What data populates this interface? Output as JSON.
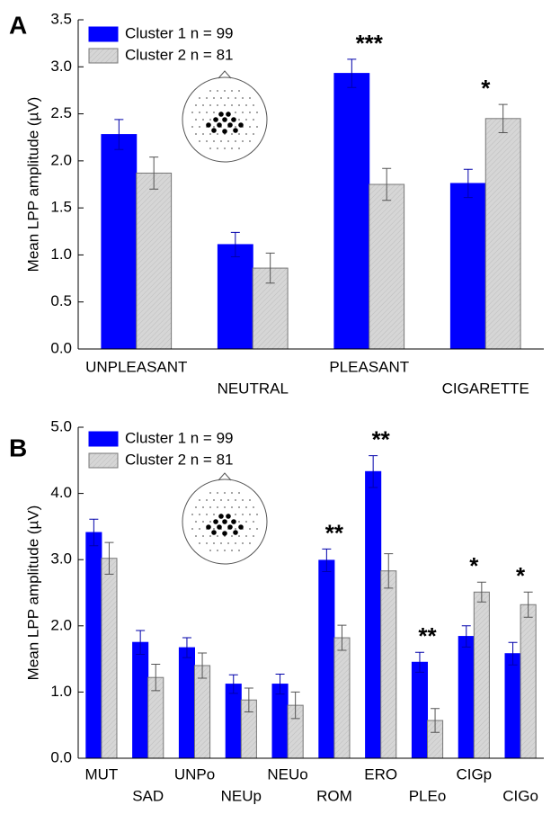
{
  "chart_data": [
    {
      "type": "bar",
      "panel_label": "A",
      "ylabel": "Mean LPP amplitude (µV)",
      "categories": [
        "UNPLEASANT",
        "NEUTRAL",
        "PLEASANT",
        "CIGARETTE"
      ],
      "series": [
        {
          "name": "Cluster 1 n = 99",
          "color": "#0000ff",
          "values": [
            2.28,
            1.11,
            2.93,
            1.76
          ],
          "errors": [
            0.16,
            0.13,
            0.15,
            0.15
          ]
        },
        {
          "name": "Cluster 2 n = 81",
          "color": "#d6d6d6",
          "values": [
            1.87,
            0.86,
            1.75,
            2.45
          ],
          "errors": [
            0.17,
            0.16,
            0.17,
            0.15
          ]
        }
      ],
      "annotations": [
        {
          "text": "***",
          "category": "PLEASANT"
        },
        {
          "text": "*",
          "category": "CIGARETTE"
        }
      ],
      "ylim": [
        0,
        3.5
      ],
      "yticks": [
        {
          "value": 0,
          "label": "0.0"
        },
        {
          "value": 0.5,
          "label": "0.5"
        },
        {
          "value": 1,
          "label": "1.0"
        },
        {
          "value": 1.5,
          "label": "1.5"
        },
        {
          "value": 2,
          "label": "2.0"
        },
        {
          "value": 2.5,
          "label": "2.5"
        },
        {
          "value": 3,
          "label": "3.0"
        },
        {
          "value": 3.5,
          "label": "3.5"
        }
      ],
      "legend": "upper left"
    },
    {
      "type": "bar",
      "panel_label": "B",
      "ylabel": "Mean LPP amplitude (µV)",
      "categories": [
        "MUT",
        "SAD",
        "UNPo",
        "NEUp",
        "NEUo",
        "ROM",
        "ERO",
        "PLEo",
        "CIGp",
        "CIGo"
      ],
      "series": [
        {
          "name": "Cluster 1 n = 99",
          "color": "#0000ff",
          "values": [
            3.41,
            1.75,
            1.67,
            1.12,
            1.12,
            2.99,
            4.33,
            1.45,
            1.84,
            1.58
          ],
          "errors": [
            0.2,
            0.18,
            0.15,
            0.14,
            0.15,
            0.17,
            0.24,
            0.15,
            0.16,
            0.17
          ]
        },
        {
          "name": "Cluster 2 n = 81",
          "color": "#d6d6d6",
          "values": [
            3.02,
            1.22,
            1.4,
            0.88,
            0.8,
            1.82,
            2.83,
            0.57,
            2.51,
            2.32
          ],
          "errors": [
            0.24,
            0.2,
            0.19,
            0.18,
            0.2,
            0.19,
            0.26,
            0.18,
            0.15,
            0.19
          ]
        }
      ],
      "annotations": [
        {
          "text": "**",
          "category": "ROM"
        },
        {
          "text": "**",
          "category": "ERO"
        },
        {
          "text": "**",
          "category": "PLEo"
        },
        {
          "text": "*",
          "category": "CIGp"
        },
        {
          "text": "*",
          "category": "CIGo"
        }
      ],
      "ylim": [
        0,
        5
      ],
      "yticks": [
        {
          "value": 0,
          "label": "0.0"
        },
        {
          "value": 1,
          "label": "1.0"
        },
        {
          "value": 2,
          "label": "2.0"
        },
        {
          "value": 3,
          "label": "3.0"
        },
        {
          "value": 4,
          "label": "4.0"
        },
        {
          "value": 5,
          "label": "5.0"
        }
      ],
      "legend": "upper left"
    }
  ]
}
